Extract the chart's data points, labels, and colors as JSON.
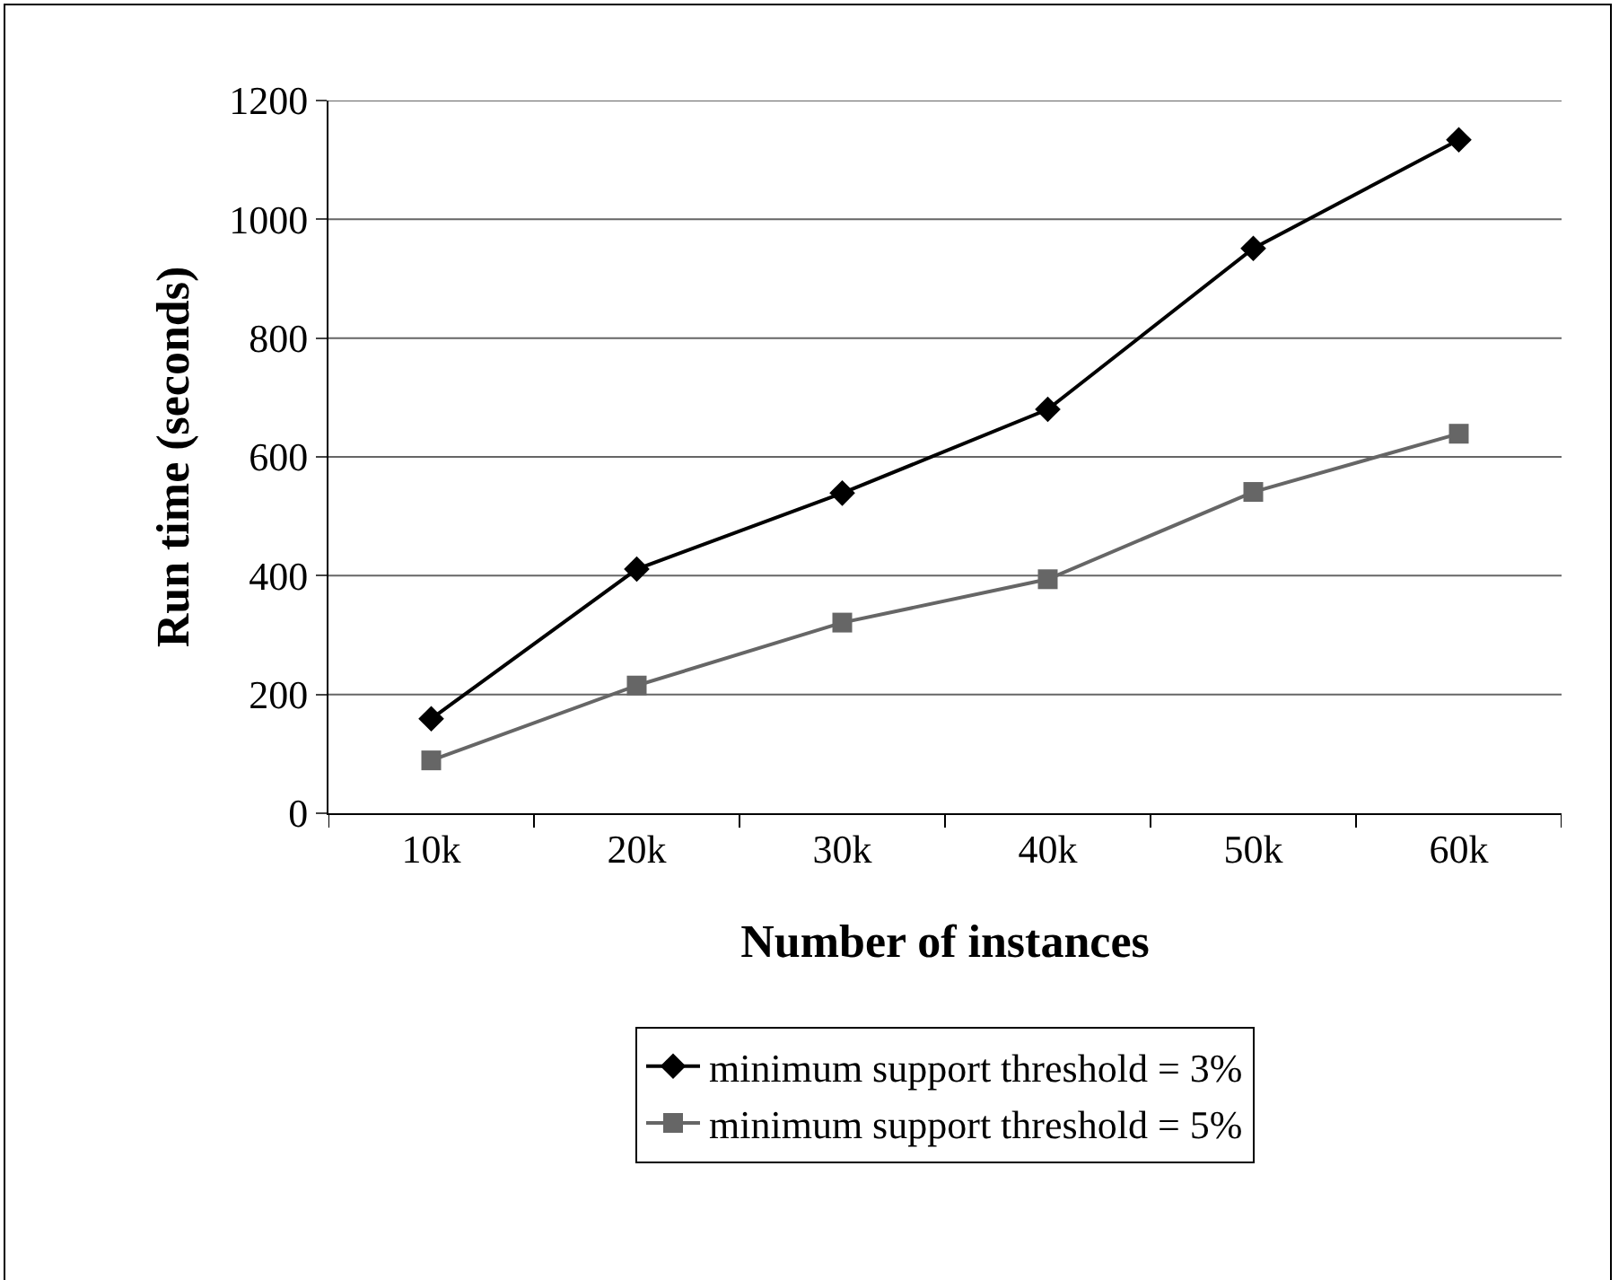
{
  "chart_data": {
    "type": "line",
    "xlabel": "Number of instances",
    "ylabel": "Run time (seconds)",
    "categories": [
      "10k",
      "20k",
      "30k",
      "40k",
      "50k",
      "60k"
    ],
    "series": [
      {
        "name": "minimum support threshold = 3%",
        "color": "#000000",
        "marker": "diamond",
        "values": [
          159,
          411,
          539,
          680,
          951,
          1134
        ]
      },
      {
        "name": "minimum support threshold = 5%",
        "color": "#666666",
        "marker": "square",
        "values": [
          89,
          215,
          321,
          394,
          541,
          639
        ]
      }
    ],
    "ylim": [
      0,
      1200
    ],
    "yticks": [
      0,
      200,
      400,
      600,
      800,
      1000,
      1200
    ],
    "grid": "y",
    "legend": "bottom",
    "line_style": "solid"
  }
}
